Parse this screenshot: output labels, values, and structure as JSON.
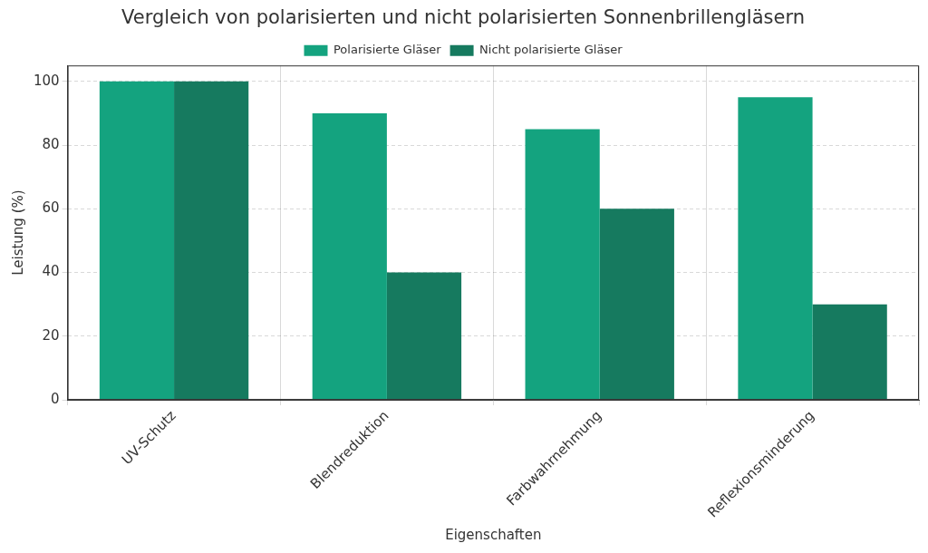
{
  "chart_data": {
    "type": "bar",
    "title": "Vergleich von polarisierten und nicht polarisierten Sonnenbrillengläsern",
    "x_label": "Eigenschaften",
    "y_label": "Leistung (%)",
    "categories": [
      "UV-Schutz",
      "Blendreduktion",
      "Farbwahrnehmung",
      "Reflexionsminderung"
    ],
    "series": [
      {
        "name": "Polarisierte Gläser",
        "color": "#14a37f",
        "values": [
          100,
          90,
          85,
          95
        ]
      },
      {
        "name": "Nicht polarisierte Gläser",
        "color": "#167a5f",
        "values": [
          100,
          40,
          60,
          30
        ]
      }
    ],
    "ylim": [
      0,
      105
    ],
    "yticks": [
      0,
      20,
      40,
      60,
      80,
      100
    ],
    "grid": true,
    "legend": "top"
  }
}
